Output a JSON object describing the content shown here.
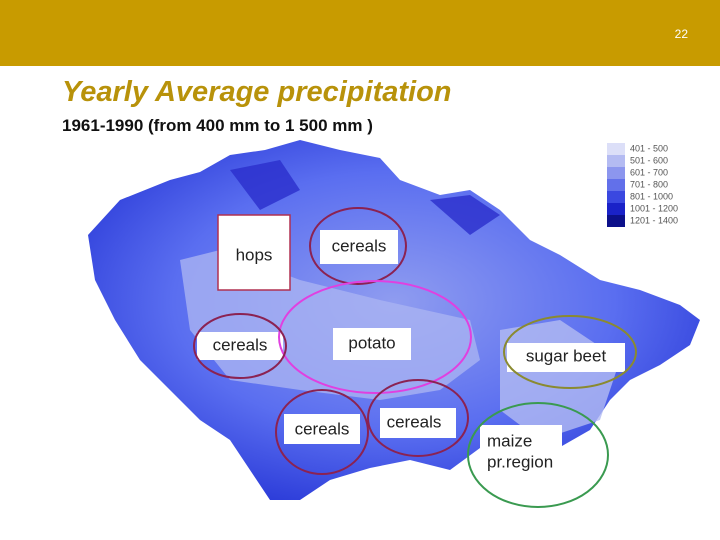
{
  "header": {
    "page_number": "22"
  },
  "title": "Yearly Average precipitation",
  "subtitle": "1961-1990 (from 400 mm to 1 500 mm )",
  "legend": {
    "items": [
      "401 - 500",
      "501 - 600",
      "601 - 700",
      "701 - 800",
      "801 - 1000",
      "1001 - 1200",
      "1201 - 1400"
    ]
  },
  "labels": [
    "hops",
    "cereals",
    "cereals",
    "potato",
    "sugar beet",
    "cereals",
    "cereals"
  ],
  "maize_label": [
    "maize",
    "pr.region"
  ]
}
